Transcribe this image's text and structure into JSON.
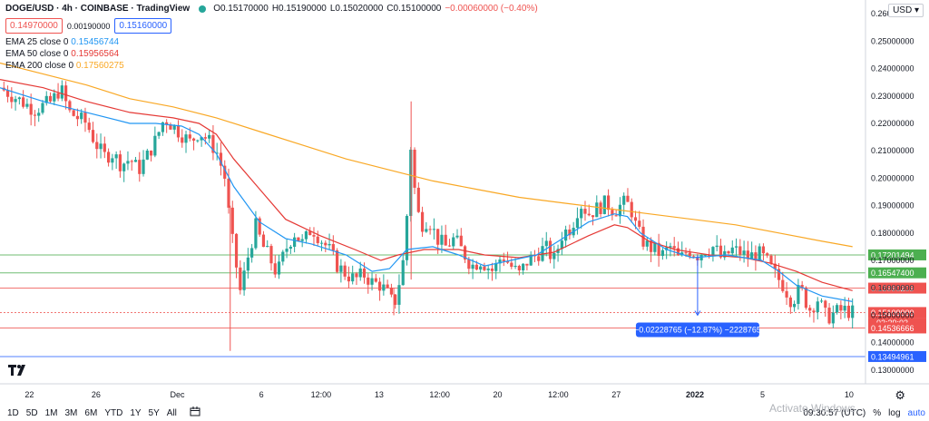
{
  "header": {
    "symbol": "DOGE/USD · 4h · COINBASE · TradingView",
    "open": "O0.15170000",
    "high": "H0.15190000",
    "low": "L0.15020000",
    "close": "C0.15100000",
    "change": "−0.00060000 (−0.40%)"
  },
  "quote": {
    "sell": "0.14970000",
    "spread": "0.00190000",
    "buy": "0.15160000"
  },
  "indicators": [
    {
      "label": "EMA 25 close 0",
      "value": "0.15456744",
      "color": "#2196f3"
    },
    {
      "label": "EMA 50 close 0",
      "value": "0.15956564",
      "color": "#e53935"
    },
    {
      "label": "EMA 200 close 0",
      "value": "0.17560275",
      "color": "#f9a825"
    }
  ],
  "currency": "USD",
  "chart_data": {
    "type": "candlestick",
    "ylim": [
      0.125,
      0.265
    ],
    "y_ticks": [
      0.13,
      0.14,
      0.15,
      0.16,
      0.17,
      0.18,
      0.19,
      0.2,
      0.21,
      0.22,
      0.23,
      0.24,
      0.25,
      0.26
    ],
    "y_tick_labels": [
      "0.13000000",
      "0.14000000",
      "0.15000000",
      "0.16000000",
      "0.17000000",
      "0.18000000",
      "0.19000000",
      "0.20000000",
      "0.21000000",
      "0.22000000",
      "0.23000000",
      "0.24000000",
      "0.25000000",
      "0.26000000"
    ],
    "x_range": [
      0,
      100
    ],
    "x_ticks": [
      {
        "x": 3.4,
        "label": "22"
      },
      {
        "x": 11.1,
        "label": "26"
      },
      {
        "x": 20.5,
        "label": "Dec"
      },
      {
        "x": 30.2,
        "label": "6"
      },
      {
        "x": 37.1,
        "label": "12:00"
      },
      {
        "x": 43.8,
        "label": "13"
      },
      {
        "x": 50.8,
        "label": "12:00"
      },
      {
        "x": 57.5,
        "label": "20"
      },
      {
        "x": 64.5,
        "label": "12:00"
      },
      {
        "x": 71.2,
        "label": "27"
      },
      {
        "x": 80.3,
        "label": "2022"
      },
      {
        "x": 88.1,
        "label": "5"
      },
      {
        "x": 98.1,
        "label": "10"
      }
    ],
    "price_levels": [
      {
        "value": 0.17201494,
        "label": "0.17201494",
        "color": "#4caf50"
      },
      {
        "value": 0.165474,
        "label": "0.16547400",
        "color": "#4caf50"
      },
      {
        "value": 0.15990209,
        "label": "0.15990209",
        "color": "#ef5350"
      },
      {
        "value": 0.151,
        "label": "0.15100000",
        "color": "#ef5350"
      },
      {
        "value": 0.14536666,
        "label": "0.14536666",
        "color": "#ef5350"
      },
      {
        "value": 0.13494961,
        "label": "0.13494961",
        "color": "#2962ff"
      }
    ],
    "countdown": "02:29:03",
    "measure": {
      "x": 80.6,
      "from": 0.172,
      "to": 0.15,
      "label": "−0.02228765 (−12.87%) −2228765"
    },
    "ema200": [
      [
        0,
        0.242
      ],
      [
        5,
        0.238
      ],
      [
        10,
        0.234
      ],
      [
        15,
        0.229
      ],
      [
        20,
        0.226
      ],
      [
        25,
        0.222
      ],
      [
        30,
        0.217
      ],
      [
        35,
        0.212
      ],
      [
        40,
        0.207
      ],
      [
        45,
        0.203
      ],
      [
        50,
        0.199
      ],
      [
        55,
        0.196
      ],
      [
        60,
        0.193
      ],
      [
        65,
        0.191
      ],
      [
        70,
        0.189
      ],
      [
        75,
        0.187
      ],
      [
        80,
        0.185
      ],
      [
        85,
        0.183
      ],
      [
        90,
        0.18
      ],
      [
        95,
        0.177
      ],
      [
        98.5,
        0.175
      ]
    ],
    "ema50": [
      [
        0,
        0.236
      ],
      [
        5,
        0.233
      ],
      [
        10,
        0.228
      ],
      [
        15,
        0.224
      ],
      [
        20,
        0.222
      ],
      [
        23,
        0.22
      ],
      [
        25,
        0.216
      ],
      [
        27,
        0.207
      ],
      [
        30,
        0.196
      ],
      [
        33,
        0.185
      ],
      [
        37,
        0.179
      ],
      [
        41,
        0.174
      ],
      [
        44,
        0.17
      ],
      [
        46,
        0.172
      ],
      [
        49,
        0.174
      ],
      [
        53,
        0.174
      ],
      [
        56,
        0.172
      ],
      [
        60,
        0.171
      ],
      [
        64,
        0.173
      ],
      [
        68,
        0.179
      ],
      [
        71,
        0.183
      ],
      [
        72.5,
        0.182
      ],
      [
        75,
        0.177
      ],
      [
        78,
        0.174
      ],
      [
        82,
        0.172
      ],
      [
        86,
        0.171
      ],
      [
        89,
        0.169
      ],
      [
        92,
        0.166
      ],
      [
        95,
        0.162
      ],
      [
        98.5,
        0.159
      ]
    ],
    "ema25": [
      [
        0,
        0.233
      ],
      [
        5,
        0.228
      ],
      [
        10,
        0.224
      ],
      [
        15,
        0.22
      ],
      [
        18,
        0.22
      ],
      [
        21,
        0.219
      ],
      [
        23,
        0.216
      ],
      [
        25,
        0.209
      ],
      [
        27,
        0.197
      ],
      [
        30,
        0.184
      ],
      [
        33,
        0.178
      ],
      [
        36,
        0.176
      ],
      [
        40,
        0.172
      ],
      [
        43,
        0.166
      ],
      [
        45,
        0.167
      ],
      [
        47,
        0.174
      ],
      [
        50,
        0.175
      ],
      [
        53,
        0.172
      ],
      [
        56,
        0.168
      ],
      [
        59,
        0.17
      ],
      [
        62,
        0.172
      ],
      [
        65,
        0.178
      ],
      [
        68,
        0.184
      ],
      [
        71,
        0.187
      ],
      [
        72.5,
        0.186
      ],
      [
        74,
        0.18
      ],
      [
        77,
        0.174
      ],
      [
        80,
        0.171
      ],
      [
        84,
        0.172
      ],
      [
        88,
        0.17
      ],
      [
        90,
        0.166
      ],
      [
        92,
        0.161
      ],
      [
        95,
        0.157
      ],
      [
        98.5,
        0.155
      ]
    ],
    "price": [
      [
        0,
        0.233
      ],
      [
        2,
        0.229
      ],
      [
        4,
        0.225
      ],
      [
        6,
        0.228
      ],
      [
        7,
        0.233
      ],
      [
        8,
        0.224
      ],
      [
        10,
        0.22
      ],
      [
        11,
        0.213
      ],
      [
        12,
        0.208
      ],
      [
        13,
        0.209
      ],
      [
        14,
        0.205
      ],
      [
        15,
        0.207
      ],
      [
        16,
        0.203
      ],
      [
        17,
        0.208
      ],
      [
        18,
        0.214
      ],
      [
        19,
        0.222
      ],
      [
        20,
        0.219
      ],
      [
        21,
        0.216
      ],
      [
        22,
        0.213
      ],
      [
        23,
        0.217
      ],
      [
        24,
        0.214
      ],
      [
        25,
        0.21
      ],
      [
        26,
        0.2
      ],
      [
        26.6,
        0.182
      ],
      [
        27.2,
        0.17
      ],
      [
        27.8,
        0.158
      ],
      [
        28.4,
        0.168
      ],
      [
        29,
        0.176
      ],
      [
        29.6,
        0.183
      ],
      [
        30.2,
        0.176
      ],
      [
        31,
        0.172
      ],
      [
        32,
        0.165
      ],
      [
        33,
        0.174
      ],
      [
        34,
        0.18
      ],
      [
        35,
        0.176
      ],
      [
        36,
        0.182
      ],
      [
        37,
        0.178
      ],
      [
        38,
        0.174
      ],
      [
        39,
        0.168
      ],
      [
        40,
        0.165
      ],
      [
        41,
        0.163
      ],
      [
        42,
        0.165
      ],
      [
        43,
        0.162
      ],
      [
        44,
        0.161
      ],
      [
        45,
        0.157
      ],
      [
        45.5,
        0.153
      ],
      [
        46,
        0.16
      ],
      [
        46.6,
        0.17
      ],
      [
        47.1,
        0.19
      ],
      [
        47.5,
        0.214
      ],
      [
        48,
        0.192
      ],
      [
        48.6,
        0.183
      ],
      [
        49.5,
        0.185
      ],
      [
        50.5,
        0.178
      ],
      [
        51.5,
        0.175
      ],
      [
        52.5,
        0.178
      ],
      [
        53.5,
        0.173
      ],
      [
        54.5,
        0.168
      ],
      [
        55.5,
        0.17
      ],
      [
        57,
        0.166
      ],
      [
        58,
        0.172
      ],
      [
        59,
        0.168
      ],
      [
        60,
        0.165
      ],
      [
        61,
        0.17
      ],
      [
        62,
        0.172
      ],
      [
        63,
        0.175
      ],
      [
        64,
        0.17
      ],
      [
        65,
        0.18
      ],
      [
        66,
        0.182
      ],
      [
        67,
        0.191
      ],
      [
        68,
        0.187
      ],
      [
        69,
        0.189
      ],
      [
        70,
        0.191
      ],
      [
        71,
        0.188
      ],
      [
        72,
        0.191
      ],
      [
        72.8,
        0.19
      ],
      [
        73.6,
        0.181
      ],
      [
        74.5,
        0.176
      ],
      [
        75.5,
        0.174
      ],
      [
        76.5,
        0.172
      ],
      [
        77.5,
        0.175
      ],
      [
        78.5,
        0.17
      ],
      [
        79.5,
        0.174
      ],
      [
        80.6,
        0.172
      ],
      [
        81.5,
        0.174
      ],
      [
        82.5,
        0.175
      ],
      [
        83.5,
        0.17
      ],
      [
        84.5,
        0.174
      ],
      [
        85.5,
        0.173
      ],
      [
        86.5,
        0.171
      ],
      [
        87.5,
        0.173
      ],
      [
        88.5,
        0.17
      ],
      [
        89.5,
        0.165
      ],
      [
        90.5,
        0.161
      ],
      [
        91.5,
        0.155
      ],
      [
        92.5,
        0.16
      ],
      [
        93.5,
        0.152
      ],
      [
        94.5,
        0.156
      ],
      [
        95.5,
        0.149
      ],
      [
        96.5,
        0.151
      ],
      [
        97.5,
        0.152
      ],
      [
        98.5,
        0.151
      ]
    ]
  },
  "toolbar": {
    "ranges": [
      "1D",
      "5D",
      "1M",
      "3M",
      "6M",
      "YTD",
      "1Y",
      "5Y",
      "All"
    ],
    "calendar_icon": "calendar-icon",
    "time": "09:30:57 (UTC)",
    "percent": "%",
    "log": "log",
    "auto": "auto"
  },
  "watermark": "Activate Windows"
}
